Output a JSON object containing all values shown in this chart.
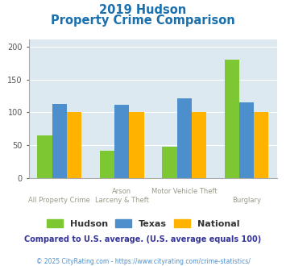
{
  "title_line1": "2019 Hudson",
  "title_line2": "Property Crime Comparison",
  "cat_labels_top": [
    "",
    "Arson",
    "Motor Vehicle Theft",
    ""
  ],
  "cat_labels_bottom": [
    "All Property Crime",
    "Larceny & Theft",
    "",
    "Burglary"
  ],
  "hudson": [
    65,
    42,
    48,
    180
  ],
  "texas": [
    113,
    111,
    121,
    115
  ],
  "national": [
    100,
    100,
    100,
    100
  ],
  "colors": {
    "hudson": "#7dc832",
    "texas": "#4d8fcc",
    "national": "#ffb300"
  },
  "ylim": [
    0,
    210
  ],
  "yticks": [
    0,
    50,
    100,
    150,
    200
  ],
  "bg_color": "#dce9f0",
  "title_color": "#1a6fad",
  "subtitle_text": "Compared to U.S. average. (U.S. average equals 100)",
  "subtitle_color": "#333399",
  "footer_text": "© 2025 CityRating.com - https://www.cityrating.com/crime-statistics/",
  "footer_color": "#4d8fcc",
  "legend_labels": [
    "Hudson",
    "Texas",
    "National"
  ],
  "xlabel_top_color": "#999988",
  "xlabel_bottom_color": "#999988"
}
